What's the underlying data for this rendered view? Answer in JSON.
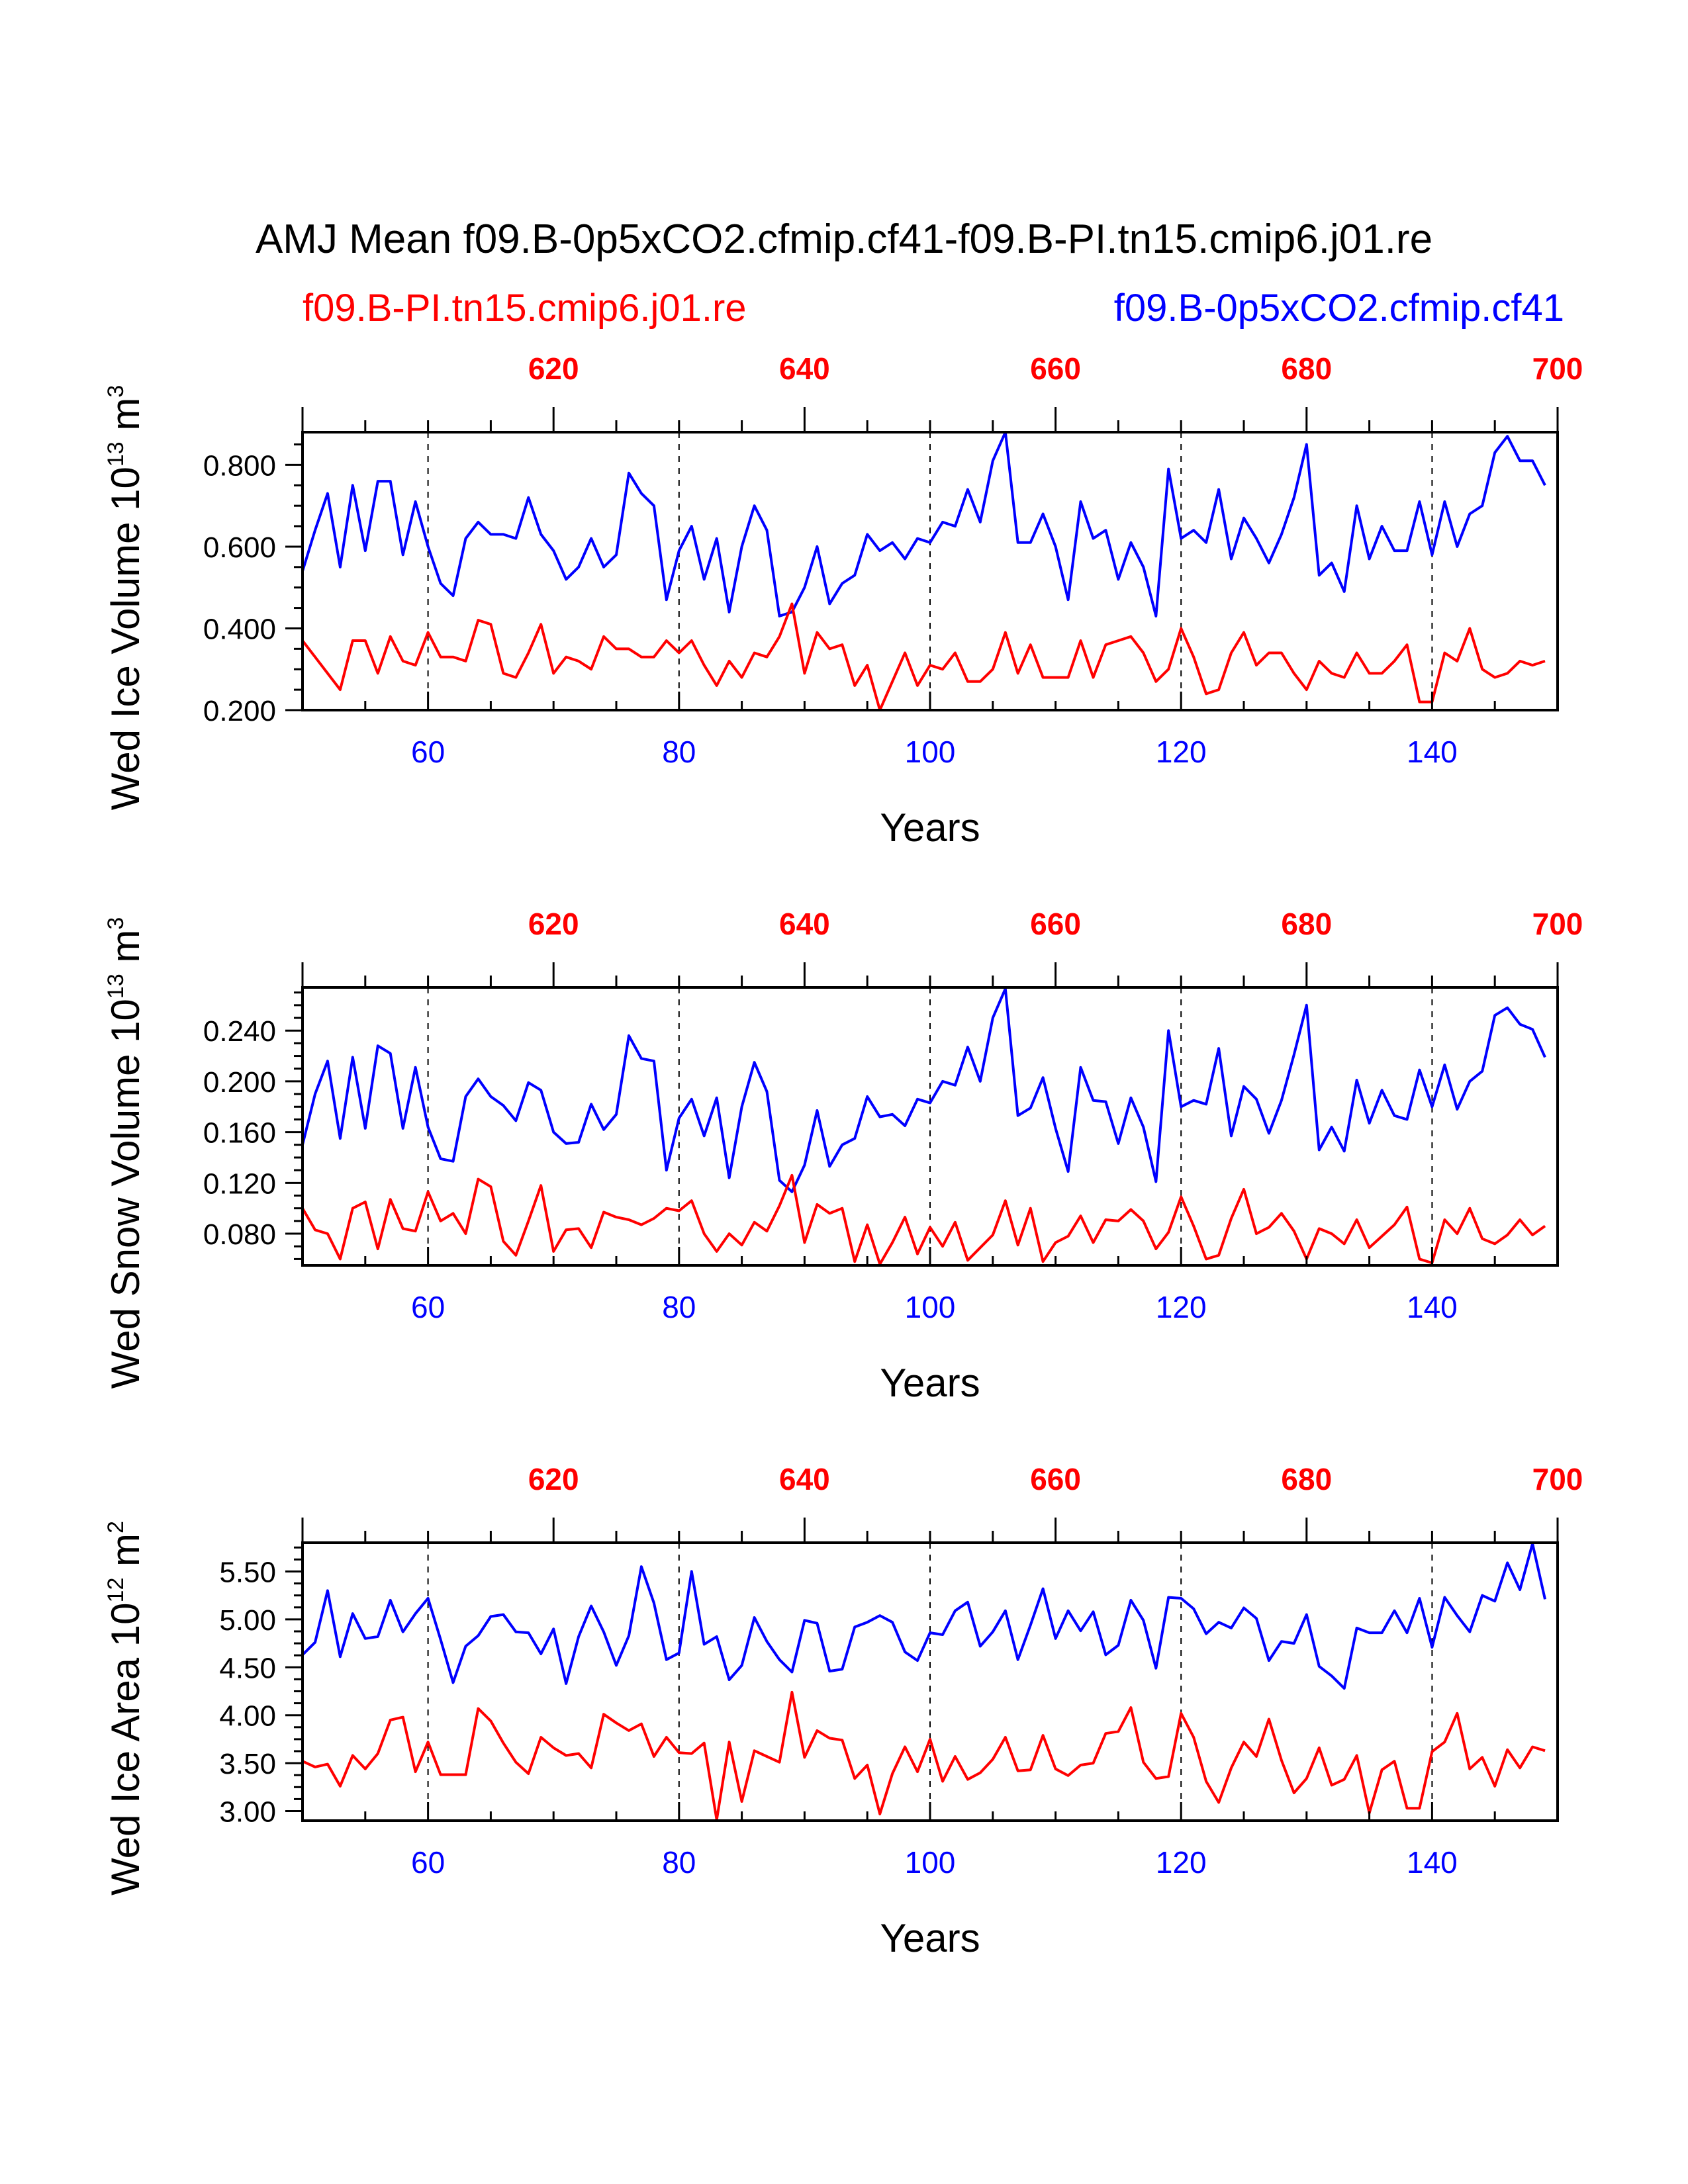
{
  "chart_data": {
    "type": "line",
    "title": "AMJ Mean f09.B-0p5xCO2.cfmip.cf41-f09.B-PI.tn15.cmip6.j01.re",
    "legend": [
      {
        "name": "f09.B-PI.tn15.cmip6.j01.re",
        "color": "#ff0000",
        "placement": "top-left"
      },
      {
        "name": "f09.B-0p5xCO2.cfmip.cf41",
        "color": "#0000ff",
        "placement": "top-right"
      }
    ],
    "colors": {
      "control": "#ff0000",
      "experiment": "#0000ff"
    },
    "xlabel": "Years",
    "x_bottom": {
      "range": [
        50,
        150
      ],
      "ticks": [
        "60",
        "80",
        "100",
        "120",
        "140"
      ],
      "color": "#0000ff"
    },
    "x_top": {
      "range": [
        600,
        700
      ],
      "ticks": [
        "620",
        "640",
        "660",
        "680",
        "700"
      ],
      "color": "#ff0000"
    },
    "panels": [
      {
        "ylabel": {
          "main": "Wed Ice Volume 10",
          "exp": "13",
          "unit": " m",
          "unit_exp": "3"
        },
        "ylim": [
          0.2,
          0.88
        ],
        "yticks": [
          "0.200",
          "0.400",
          "0.600",
          "0.800"
        ],
        "ytick_values": [
          0.2,
          0.4,
          0.6,
          0.8
        ],
        "series": [
          {
            "name": "f09.B-0p5xCO2.cfmip.cf41",
            "x_start": 50,
            "values": [
              0.54,
              0.64,
              0.73,
              0.55,
              0.75,
              0.59,
              0.76,
              0.76,
              0.58,
              0.71,
              0.6,
              0.51,
              0.48,
              0.62,
              0.66,
              0.63,
              0.63,
              0.62,
              0.72,
              0.63,
              0.59,
              0.52,
              0.55,
              0.62,
              0.55,
              0.58,
              0.78,
              0.73,
              0.7,
              0.47,
              0.59,
              0.65,
              0.52,
              0.62,
              0.44,
              0.6,
              0.7,
              0.64,
              0.43,
              0.44,
              0.5,
              0.6,
              0.46,
              0.51,
              0.53,
              0.63,
              0.59,
              0.61,
              0.57,
              0.62,
              0.61,
              0.66,
              0.65,
              0.74,
              0.66,
              0.81,
              0.88,
              0.61,
              0.61,
              0.68,
              0.6,
              0.47,
              0.71,
              0.62,
              0.64,
              0.52,
              0.61,
              0.55,
              0.43,
              0.79,
              0.62,
              0.64,
              0.61,
              0.74,
              0.57,
              0.67,
              0.62,
              0.56,
              0.63,
              0.72,
              0.85,
              0.53,
              0.56,
              0.49,
              0.7,
              0.57,
              0.65,
              0.59,
              0.59,
              0.71,
              0.58,
              0.71,
              0.6,
              0.68,
              0.7,
              0.83,
              0.87,
              0.81,
              0.81,
              0.75
            ]
          },
          {
            "name": "f09.B-PI.tn15.cmip6.j01.re",
            "x_start": 50,
            "values": [
              0.37,
              0.33,
              0.29,
              0.25,
              0.37,
              0.37,
              0.29,
              0.38,
              0.32,
              0.31,
              0.39,
              0.33,
              0.33,
              0.32,
              0.42,
              0.41,
              0.29,
              0.28,
              0.34,
              0.41,
              0.29,
              0.33,
              0.32,
              0.3,
              0.38,
              0.35,
              0.35,
              0.33,
              0.33,
              0.37,
              0.34,
              0.37,
              0.31,
              0.26,
              0.32,
              0.28,
              0.34,
              0.33,
              0.38,
              0.46,
              0.29,
              0.39,
              0.35,
              0.36,
              0.26,
              0.31,
              0.2,
              0.27,
              0.34,
              0.26,
              0.31,
              0.3,
              0.34,
              0.27,
              0.27,
              0.3,
              0.39,
              0.29,
              0.36,
              0.28,
              0.28,
              0.28,
              0.37,
              0.28,
              0.36,
              0.37,
              0.38,
              0.34,
              0.27,
              0.3,
              0.4,
              0.33,
              0.24,
              0.25,
              0.34,
              0.39,
              0.31,
              0.34,
              0.34,
              0.29,
              0.25,
              0.32,
              0.29,
              0.28,
              0.34,
              0.29,
              0.29,
              0.32,
              0.36,
              0.22,
              0.22,
              0.34,
              0.32,
              0.4,
              0.3,
              0.28,
              0.29,
              0.32,
              0.31,
              0.32
            ]
          }
        ]
      },
      {
        "ylabel": {
          "main": "Wed Snow Volume 10",
          "exp": "13",
          "unit": " m",
          "unit_exp": "3"
        },
        "ylim": [
          0.055,
          0.274
        ],
        "yticks": [
          "0.080",
          "0.120",
          "0.160",
          "0.200",
          "0.240"
        ],
        "ytick_values": [
          0.08,
          0.12,
          0.16,
          0.2,
          0.24
        ],
        "series": [
          {
            "name": "f09.B-0p5xCO2.cfmip.cf41",
            "x_start": 50,
            "values": [
              0.15,
              0.19,
              0.216,
              0.155,
              0.219,
              0.163,
              0.228,
              0.222,
              0.163,
              0.211,
              0.164,
              0.139,
              0.137,
              0.188,
              0.202,
              0.188,
              0.181,
              0.169,
              0.199,
              0.193,
              0.16,
              0.151,
              0.152,
              0.182,
              0.162,
              0.174,
              0.236,
              0.218,
              0.216,
              0.13,
              0.171,
              0.186,
              0.157,
              0.187,
              0.124,
              0.18,
              0.215,
              0.192,
              0.122,
              0.113,
              0.134,
              0.177,
              0.133,
              0.15,
              0.155,
              0.188,
              0.172,
              0.174,
              0.165,
              0.186,
              0.183,
              0.2,
              0.197,
              0.227,
              0.2,
              0.25,
              0.273,
              0.173,
              0.179,
              0.203,
              0.163,
              0.129,
              0.211,
              0.185,
              0.184,
              0.151,
              0.187,
              0.164,
              0.121,
              0.24,
              0.18,
              0.185,
              0.182,
              0.226,
              0.157,
              0.196,
              0.186,
              0.159,
              0.185,
              0.221,
              0.26,
              0.146,
              0.164,
              0.145,
              0.201,
              0.167,
              0.193,
              0.173,
              0.17,
              0.209,
              0.18,
              0.213,
              0.178,
              0.2,
              0.208,
              0.252,
              0.258,
              0.245,
              0.241,
              0.219
            ]
          },
          {
            "name": "f09.B-PI.tn15.cmip6.j01.re",
            "x_start": 50,
            "values": [
              0.1,
              0.083,
              0.08,
              0.06,
              0.1,
              0.105,
              0.068,
              0.107,
              0.084,
              0.082,
              0.113,
              0.09,
              0.096,
              0.08,
              0.123,
              0.117,
              0.074,
              0.063,
              0.09,
              0.118,
              0.066,
              0.083,
              0.084,
              0.069,
              0.097,
              0.093,
              0.091,
              0.087,
              0.092,
              0.1,
              0.098,
              0.106,
              0.08,
              0.066,
              0.08,
              0.071,
              0.089,
              0.082,
              0.102,
              0.126,
              0.073,
              0.103,
              0.096,
              0.1,
              0.058,
              0.087,
              0.056,
              0.073,
              0.093,
              0.064,
              0.085,
              0.07,
              0.089,
              0.059,
              0.069,
              0.079,
              0.106,
              0.071,
              0.1,
              0.058,
              0.073,
              0.078,
              0.094,
              0.073,
              0.091,
              0.09,
              0.099,
              0.09,
              0.068,
              0.081,
              0.109,
              0.086,
              0.06,
              0.063,
              0.092,
              0.115,
              0.08,
              0.085,
              0.096,
              0.082,
              0.06,
              0.084,
              0.08,
              0.072,
              0.091,
              0.069,
              0.078,
              0.087,
              0.101,
              0.06,
              0.057,
              0.091,
              0.08,
              0.1,
              0.076,
              0.072,
              0.079,
              0.091,
              0.079,
              0.086
            ]
          }
        ]
      },
      {
        "ylabel": {
          "main": "Wed Ice Area 10",
          "exp": "12",
          "unit": " m",
          "unit_exp": "2"
        },
        "ylim": [
          2.9,
          5.8
        ],
        "yticks": [
          "3.00",
          "3.50",
          "4.00",
          "4.50",
          "5.00",
          "5.50"
        ],
        "ytick_values": [
          3.0,
          3.5,
          4.0,
          4.5,
          5.0,
          5.5
        ],
        "series": [
          {
            "name": "f09.B-0p5xCO2.cfmip.cf41",
            "x_start": 50,
            "values": [
              4.63,
              4.76,
              5.3,
              4.61,
              5.06,
              4.8,
              4.82,
              5.2,
              4.87,
              5.06,
              5.22,
              4.79,
              4.34,
              4.72,
              4.83,
              5.03,
              5.05,
              4.87,
              4.86,
              4.64,
              4.9,
              4.33,
              4.82,
              5.14,
              4.87,
              4.52,
              4.83,
              5.55,
              5.17,
              4.58,
              4.65,
              5.5,
              4.74,
              4.82,
              4.37,
              4.52,
              5.02,
              4.77,
              4.58,
              4.45,
              4.99,
              4.96,
              4.46,
              4.48,
              4.92,
              4.97,
              5.04,
              4.97,
              4.66,
              4.57,
              4.86,
              4.84,
              5.09,
              5.18,
              4.72,
              4.87,
              5.09,
              4.58,
              4.94,
              5.32,
              4.8,
              5.09,
              4.88,
              5.08,
              4.63,
              4.73,
              5.2,
              4.99,
              4.49,
              5.23,
              5.22,
              5.11,
              4.85,
              4.97,
              4.91,
              5.12,
              5.01,
              4.57,
              4.77,
              4.75,
              5.05,
              4.51,
              4.41,
              4.28,
              4.91,
              4.86,
              4.86,
              5.09,
              4.86,
              5.22,
              4.71,
              5.23,
              5.04,
              4.87,
              5.25,
              5.19,
              5.59,
              5.31,
              5.79,
              5.21
            ]
          },
          {
            "name": "f09.B-PI.tn15.cmip6.j01.re",
            "x_start": 50,
            "values": [
              3.52,
              3.46,
              3.49,
              3.26,
              3.58,
              3.44,
              3.6,
              3.95,
              3.98,
              3.41,
              3.72,
              3.38,
              3.38,
              3.38,
              4.07,
              3.94,
              3.71,
              3.51,
              3.39,
              3.77,
              3.66,
              3.58,
              3.6,
              3.45,
              4.01,
              3.92,
              3.84,
              3.91,
              3.57,
              3.77,
              3.61,
              3.6,
              3.71,
              2.91,
              3.72,
              3.1,
              3.63,
              3.57,
              3.51,
              4.24,
              3.56,
              3.84,
              3.76,
              3.74,
              3.34,
              3.48,
              2.97,
              3.39,
              3.67,
              3.41,
              3.75,
              3.31,
              3.57,
              3.33,
              3.4,
              3.54,
              3.77,
              3.42,
              3.43,
              3.79,
              3.44,
              3.37,
              3.48,
              3.5,
              3.81,
              3.83,
              4.08,
              3.51,
              3.34,
              3.36,
              4.02,
              3.77,
              3.31,
              3.09,
              3.45,
              3.72,
              3.57,
              3.96,
              3.53,
              3.19,
              3.34,
              3.66,
              3.27,
              3.33,
              3.58,
              2.98,
              3.43,
              3.52,
              3.03,
              3.03,
              3.62,
              3.72,
              4.02,
              3.44,
              3.56,
              3.26,
              3.64,
              3.45,
              3.67,
              3.63
            ]
          }
        ]
      }
    ]
  }
}
